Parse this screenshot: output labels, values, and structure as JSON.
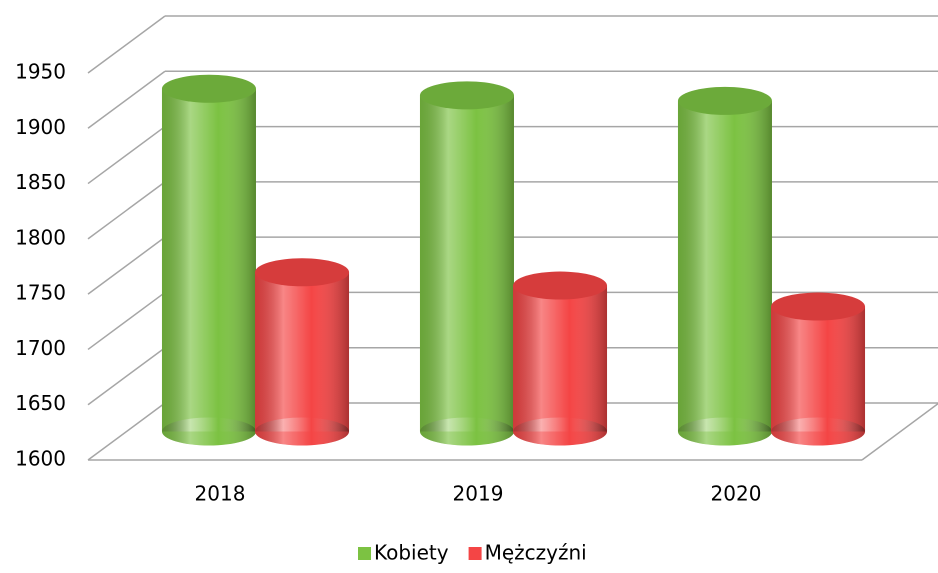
{
  "chart_data": {
    "type": "bar3d",
    "categories": [
      "2018",
      "2019",
      "2020"
    ],
    "series": [
      {
        "name": "Kobiety",
        "color": "#7cc242",
        "values": [
          1910,
          1904,
          1899
        ]
      },
      {
        "name": "Mężczyźni",
        "color": "#f44545",
        "values": [
          1744,
          1732,
          1713
        ]
      }
    ],
    "ylim": [
      1600,
      1950
    ],
    "yticks": [
      1600,
      1650,
      1700,
      1750,
      1800,
      1850,
      1900,
      1950
    ],
    "grid": true,
    "legend": "bottom"
  }
}
